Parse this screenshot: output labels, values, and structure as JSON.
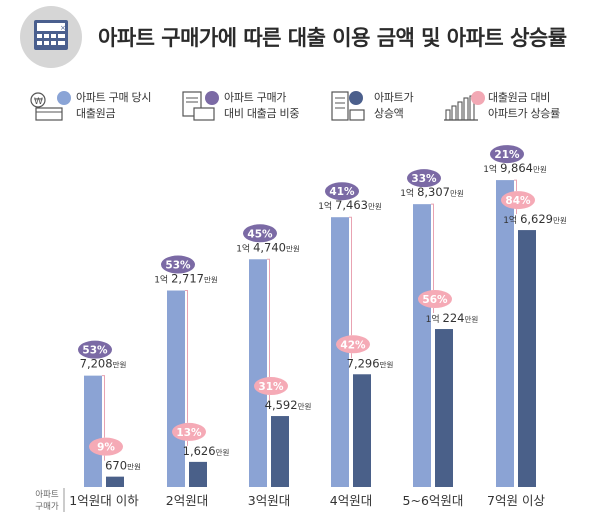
{
  "title": "아파트 구매가에 따른 대출 이용 금액 및 아파트 상승률",
  "legend": [
    {
      "icon": "coin-card-icon",
      "line1": "아파트 구매 당시",
      "line2": "대출원금",
      "color": "#8aa4d6"
    },
    {
      "icon": "document-card-icon",
      "line1": "아파트 구매가",
      "line2": "대비 대출금 비중",
      "color": "#7b6aa5"
    },
    {
      "icon": "building-coins-icon",
      "line1": "아파트가",
      "line2": "상승액",
      "color": "#4b5f8c"
    },
    {
      "icon": "bar-chart-icon",
      "line1": "대출원금 대비",
      "line2": "아파트가 상승률",
      "color": "#f2a8b4"
    }
  ],
  "axis_label": [
    "아파트",
    "구매가"
  ],
  "chart_data": {
    "type": "bar",
    "categories": [
      "1억원대 이하",
      "2억원대",
      "3억원대",
      "4억원대",
      "5~6억원대",
      "7억원 이상"
    ],
    "units": "만원",
    "series": [
      {
        "name": "아파트 구매 당시 대출원금",
        "values": [
          7208,
          12717,
          14740,
          17463,
          18307,
          19864
        ],
        "labels": [
          "7,208",
          "2,717",
          "4,740",
          "7,463",
          "8,307",
          "9,864"
        ],
        "label_prefix": [
          "",
          "1억",
          "1억",
          "1억",
          "1억",
          "1억"
        ]
      },
      {
        "name": "아파트가 상승액",
        "values": [
          670,
          1626,
          4592,
          7296,
          10224,
          16629
        ],
        "labels": [
          "670",
          "1,626",
          "4,592",
          "7,296",
          "224",
          "6,629"
        ],
        "label_prefix": [
          "",
          "",
          "",
          "",
          "1억",
          "1억"
        ]
      }
    ],
    "loan_ratio_pct": [
      "53%",
      "53%",
      "45%",
      "41%",
      "33%",
      "21%"
    ],
    "increase_rate_pct": [
      "9%",
      "13%",
      "31%",
      "42%",
      "56%",
      "84%"
    ],
    "ylim": [
      0,
      20000
    ],
    "colors": {
      "loan": "#8ba3d4",
      "increase": "#4a6089",
      "ratio_badge": "#7b6aa5",
      "rate_badge": "#f5aab6",
      "connector": "#e8a3b2"
    }
  }
}
